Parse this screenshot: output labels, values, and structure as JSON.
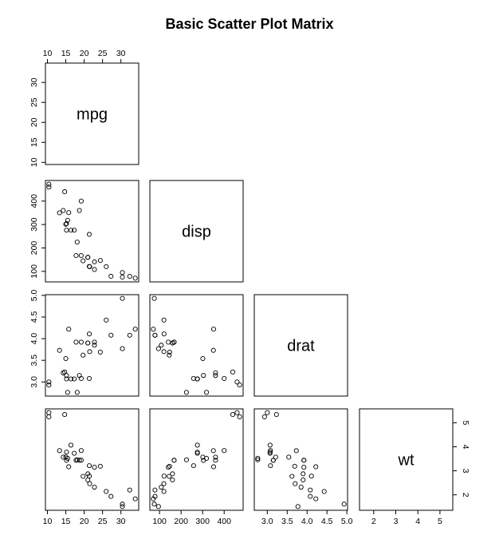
{
  "chart_data": {
    "type": "scatter-matrix",
    "title": "Basic Scatter Plot Matrix",
    "variables": [
      "mpg",
      "disp",
      "drat",
      "wt"
    ],
    "ranges": {
      "mpg": [
        10.4,
        33.9
      ],
      "disp": [
        71.1,
        472
      ],
      "drat": [
        2.76,
        4.93
      ],
      "wt": [
        1.513,
        5.424
      ]
    },
    "ticks": {
      "mpg": [
        10,
        15,
        20,
        25,
        30
      ],
      "disp": [
        100,
        200,
        300,
        400
      ],
      "drat": [
        3.0,
        3.5,
        4.0,
        4.5,
        5.0
      ],
      "wt": [
        2,
        3,
        4,
        5
      ]
    },
    "tick_labels": {
      "mpg": [
        "10",
        "15",
        "20",
        "25",
        "30"
      ],
      "disp": [
        "100",
        "200",
        "300",
        "400"
      ],
      "drat": [
        "3.0",
        "3.5",
        "4.0",
        "4.5",
        "5.0"
      ],
      "wt": [
        "2",
        "3",
        "4",
        "5"
      ]
    },
    "bottom_tick_labels": {
      "wt": [
        "2",
        "3",
        "4",
        "5"
      ]
    },
    "observations": {
      "mpg": [
        21,
        21,
        22.8,
        21.4,
        18.7,
        18.1,
        14.3,
        24.4,
        22.8,
        19.2,
        17.8,
        16.4,
        17.3,
        15.2,
        10.4,
        10.4,
        14.7,
        32.4,
        30.4,
        33.9,
        21.5,
        15.5,
        15.2,
        13.3,
        19.2,
        27.3,
        26,
        30.4,
        15.8,
        19.7,
        15,
        21.4
      ],
      "disp": [
        160,
        160,
        108,
        258,
        360,
        225,
        360,
        146.7,
        140.8,
        167.6,
        167.6,
        275.8,
        275.8,
        275.8,
        472,
        460,
        440,
        78.7,
        75.7,
        71.1,
        120.1,
        318,
        304,
        350,
        400,
        79,
        120.3,
        95.1,
        351,
        145,
        301,
        121
      ],
      "drat": [
        3.9,
        3.9,
        3.85,
        3.08,
        3.15,
        2.76,
        3.21,
        3.69,
        3.92,
        3.92,
        3.92,
        3.07,
        3.07,
        3.07,
        2.93,
        3,
        3.23,
        4.08,
        4.93,
        4.22,
        3.7,
        2.76,
        3.15,
        3.73,
        3.08,
        4.08,
        4.43,
        3.77,
        4.22,
        3.62,
        3.54,
        4.11
      ],
      "wt": [
        2.62,
        2.875,
        2.32,
        3.215,
        3.44,
        3.46,
        3.57,
        3.19,
        3.15,
        3.44,
        3.44,
        4.07,
        3.73,
        3.78,
        5.25,
        5.424,
        5.345,
        2.2,
        1.615,
        1.835,
        2.465,
        3.52,
        3.435,
        3.84,
        3.845,
        1.935,
        2.14,
        1.513,
        3.17,
        2.77,
        3.57,
        2.78
      ]
    },
    "layout": "lower-triangle",
    "grid": false,
    "legend": "none"
  }
}
